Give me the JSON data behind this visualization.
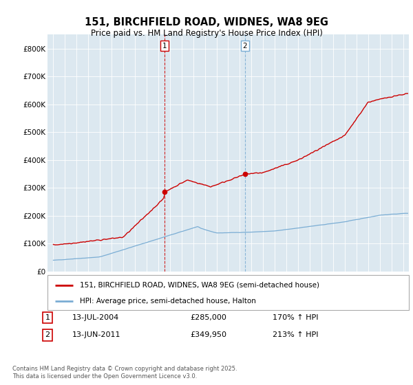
{
  "title": "151, BIRCHFIELD ROAD, WIDNES, WA8 9EG",
  "subtitle": "Price paid vs. HM Land Registry's House Price Index (HPI)",
  "legend_line1": "151, BIRCHFIELD ROAD, WIDNES, WA8 9EG (semi-detached house)",
  "legend_line2": "HPI: Average price, semi-detached house, Halton",
  "footer": "Contains HM Land Registry data © Crown copyright and database right 2025.\nThis data is licensed under the Open Government Licence v3.0.",
  "sale1_date": "13-JUL-2004",
  "sale1_price": "£285,000",
  "sale1_hpi": "170% ↑ HPI",
  "sale2_date": "13-JUN-2011",
  "sale2_price": "£349,950",
  "sale2_hpi": "213% ↑ HPI",
  "property_color": "#cc0000",
  "hpi_color": "#7aadd4",
  "vline1_color": "#cc0000",
  "vline2_color": "#7aadd4",
  "background_chart": "#dce8f0",
  "ylim": [
    0,
    850000
  ],
  "yticks": [
    0,
    100000,
    200000,
    300000,
    400000,
    500000,
    600000,
    700000,
    800000
  ],
  "ytick_labels": [
    "£0",
    "£100K",
    "£200K",
    "£300K",
    "£400K",
    "£500K",
    "£600K",
    "£700K",
    "£800K"
  ],
  "xlim_start": 1994.5,
  "xlim_end": 2025.5,
  "sale1_x": 2004.54,
  "sale1_y": 285000,
  "sale2_x": 2011.45,
  "sale2_y": 349950
}
